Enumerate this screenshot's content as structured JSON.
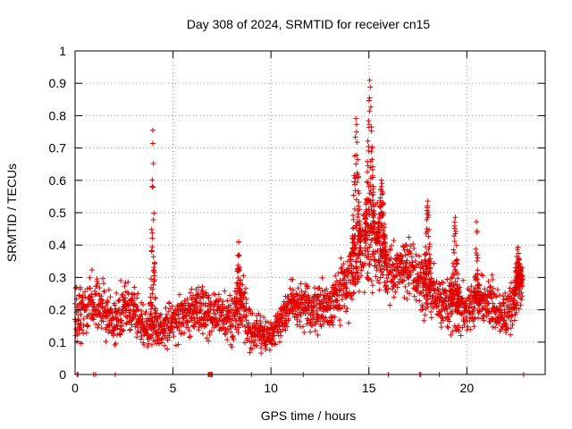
{
  "chart_data": {
    "type": "scatter",
    "title": "Day 308 of 2024, SRMTID for receiver cn15",
    "xlabel": "GPS time / hours",
    "ylabel": "SRMTID / TECUs",
    "xlim": [
      0,
      24
    ],
    "ylim": [
      0,
      1
    ],
    "x_ticks": [
      0,
      5,
      10,
      15,
      20
    ],
    "y_ticks": [
      0,
      0.1,
      0.2,
      0.3,
      0.4,
      0.5,
      0.6,
      0.7,
      0.8,
      0.9,
      1
    ],
    "x_tick_labels": [
      "0",
      "5",
      "10",
      "15",
      "20"
    ],
    "y_tick_labels": [
      "0",
      "0.1",
      "0.2",
      "0.3",
      "0.4",
      "0.5",
      "0.6",
      "0.7",
      "0.8",
      "0.9",
      "1"
    ],
    "grid": true,
    "marker": "+",
    "color": "#e00000",
    "profile": [
      {
        "x": 0.0,
        "base": 0.18,
        "spread": 0.07
      },
      {
        "x": 1.0,
        "base": 0.23,
        "spread": 0.08
      },
      {
        "x": 2.0,
        "base": 0.16,
        "spread": 0.06
      },
      {
        "x": 2.6,
        "base": 0.22,
        "spread": 0.07
      },
      {
        "x": 3.5,
        "base": 0.15,
        "spread": 0.06
      },
      {
        "x": 4.0,
        "base": 0.14,
        "spread": 0.05
      },
      {
        "x": 5.0,
        "base": 0.16,
        "spread": 0.06
      },
      {
        "x": 6.0,
        "base": 0.2,
        "spread": 0.06
      },
      {
        "x": 7.0,
        "base": 0.19,
        "spread": 0.06
      },
      {
        "x": 8.0,
        "base": 0.17,
        "spread": 0.07
      },
      {
        "x": 8.5,
        "base": 0.22,
        "spread": 0.08
      },
      {
        "x": 9.0,
        "base": 0.13,
        "spread": 0.05
      },
      {
        "x": 10.0,
        "base": 0.12,
        "spread": 0.04
      },
      {
        "x": 11.0,
        "base": 0.22,
        "spread": 0.06
      },
      {
        "x": 12.0,
        "base": 0.2,
        "spread": 0.06
      },
      {
        "x": 13.0,
        "base": 0.22,
        "spread": 0.07
      },
      {
        "x": 14.0,
        "base": 0.28,
        "spread": 0.09
      },
      {
        "x": 14.7,
        "base": 0.4,
        "spread": 0.12
      },
      {
        "x": 15.3,
        "base": 0.42,
        "spread": 0.12
      },
      {
        "x": 16.0,
        "base": 0.32,
        "spread": 0.08
      },
      {
        "x": 17.0,
        "base": 0.33,
        "spread": 0.08
      },
      {
        "x": 18.0,
        "base": 0.26,
        "spread": 0.08
      },
      {
        "x": 19.0,
        "base": 0.22,
        "spread": 0.08
      },
      {
        "x": 20.0,
        "base": 0.2,
        "spread": 0.07
      },
      {
        "x": 21.0,
        "base": 0.24,
        "spread": 0.06
      },
      {
        "x": 22.0,
        "base": 0.18,
        "spread": 0.07
      },
      {
        "x": 22.7,
        "base": 0.28,
        "spread": 0.08
      }
    ],
    "spikes": [
      {
        "x_start": 3.85,
        "x_end": 4.1,
        "peak": 0.78
      },
      {
        "x_start": 8.2,
        "x_end": 8.5,
        "peak": 0.41
      },
      {
        "x_start": 14.1,
        "x_end": 14.6,
        "peak": 0.81
      },
      {
        "x_start": 14.8,
        "x_end": 15.3,
        "peak": 0.93
      },
      {
        "x_start": 15.4,
        "x_end": 15.9,
        "peak": 0.61
      },
      {
        "x_start": 17.8,
        "x_end": 18.2,
        "peak": 0.55
      },
      {
        "x_start": 19.2,
        "x_end": 19.6,
        "peak": 0.5
      },
      {
        "x_start": 20.4,
        "x_end": 20.6,
        "peak": 0.5
      },
      {
        "x_start": 22.4,
        "x_end": 22.8,
        "peak": 0.4
      }
    ],
    "zero_points_x": [
      0.1,
      0.15,
      0.95,
      1.05,
      2.05,
      6.8,
      6.85,
      6.9,
      6.95,
      7.0,
      9.0,
      11.65,
      16.0,
      17.6,
      17.65,
      18.6,
      22.9
    ]
  }
}
